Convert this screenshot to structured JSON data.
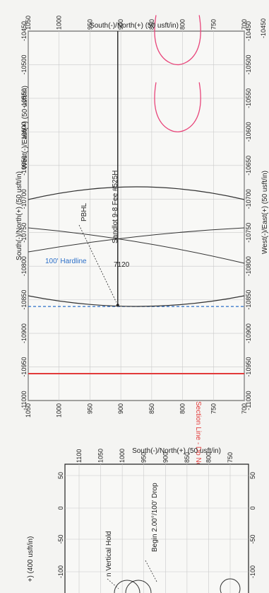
{
  "chart_data": [
    {
      "type": "line",
      "title": "",
      "orientation": "rotated 90° clockwise on the page",
      "xlabel_top": "South(-)/North(+) (50 usft/in)",
      "xlabel_bottom": "South(-)/North(+) (50 usft/in)",
      "ylabel_left": "West(-)/East(+) (50 usft/in)",
      "ylabel_right": "West(-)/East(+) (50 usft/in)",
      "header_fragment": "-10450",
      "ns_ticks": [
        "1050",
        "1000",
        "950",
        "900",
        "850",
        "800",
        "750",
        "700"
      ],
      "ew_ticks": [
        "-11000",
        "-10950",
        "-10900",
        "-10850",
        "-10800",
        "-10750",
        "-10700",
        "-10650",
        "-10600",
        "-10550",
        "-10500",
        "-10450"
      ],
      "ns_range": [
        700,
        1050
      ],
      "ew_range": [
        -11000,
        -10450
      ],
      "grid": true,
      "annotations": {
        "section_line": "Section Line - Do Not Cross",
        "hardline": "100'  Hardline",
        "md_label": "7120",
        "well_label": "Sandlot 9-8 Fee #525H",
        "pbhl": "PBHL"
      },
      "lines": {
        "section_line_ew": -10960,
        "hardline_ew": -10860,
        "wellpath_ns": 905,
        "wellpath_ew_range": [
          -10860,
          -10450
        ],
        "wellpath_end_ew": -10858
      },
      "curves": [
        {
          "apex_ns": 808,
          "apex_ew": -10600,
          "half_width_ns": 35
        },
        {
          "apex_ns": 808,
          "apex_ew": -10500,
          "half_width_ns": 35
        }
      ],
      "colors": {
        "section": "#e23b3b",
        "hardline": "#2c6fc8",
        "curves": "#e8457a",
        "ink": "#222222"
      }
    },
    {
      "type": "line",
      "title": "",
      "partial": true,
      "xlabel_top": "South(-)/North(+) (50 usft/in)",
      "ylabel_partial": "+) (400 usft/in)",
      "ns_ticks": [
        "1100",
        "1050",
        "1000",
        "950",
        "900",
        "850",
        "800",
        "750"
      ],
      "ew_ticks_left": [
        "50",
        "0",
        "-50",
        "-100"
      ],
      "ew_ticks_right": [
        "50",
        "0",
        "-50",
        "-100"
      ],
      "annotations": {
        "drop": "Begin 2.00°/100' Drop",
        "hold": "n Vertical Hold"
      },
      "colors": {
        "ink": "#222222"
      }
    }
  ]
}
